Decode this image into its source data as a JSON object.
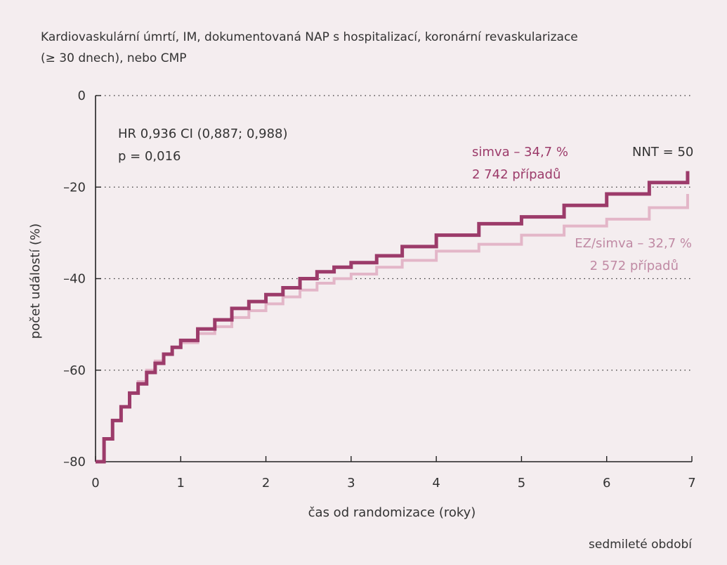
{
  "chart_data": {
    "type": "line",
    "title_lines": [
      "Kardiovaskulární úmrtí, IM, dokumentovaná NAP s hospitalizací, koronární revaskularizace",
      "(≥ 30 dnech), nebo CMP"
    ],
    "xlabel": "čas od randomizace (roky)",
    "ylabel": "počet událostí (%)",
    "footer": "sedmileté období",
    "xlim": [
      0,
      7
    ],
    "ylim": [
      -80,
      0
    ],
    "xticks": [
      "0",
      "1",
      "2",
      "3",
      "4",
      "5",
      "6",
      "7"
    ],
    "yticks": [
      "0",
      "–20",
      "–40",
      "–60",
      "–80"
    ],
    "ytick_values": [
      0,
      -20,
      -40,
      -60,
      -80
    ],
    "grid": "dotted horizontal",
    "stats_lines": [
      "HR 0,936 CI (0,887; 0,988)",
      "p = 0,016"
    ],
    "nnt_label": "NNT = 50",
    "series": [
      {
        "name": "simva – 34,7 %",
        "label_lines": [
          "simva – 34,7 %",
          "2 742 případů"
        ],
        "color": "#9c3b6a",
        "x": [
          0,
          0.1,
          0.2,
          0.3,
          0.4,
          0.5,
          0.6,
          0.7,
          0.8,
          0.9,
          1.0,
          1.2,
          1.4,
          1.6,
          1.8,
          2.0,
          2.2,
          2.4,
          2.6,
          2.8,
          3.0,
          3.3,
          3.6,
          4.0,
          4.5,
          5.0,
          5.5,
          6.0,
          6.5,
          6.95
        ],
        "y": [
          -80,
          -75,
          -71,
          -68,
          -65,
          -63,
          -60.5,
          -58.5,
          -56.5,
          -55,
          -53.5,
          -51,
          -49,
          -46.5,
          -45,
          -43.5,
          -42,
          -40,
          -38.5,
          -37.5,
          -36.5,
          -35,
          -33,
          -30.5,
          -28,
          -26.5,
          -24,
          -21.5,
          -19,
          -16.5
        ]
      },
      {
        "name": "EZ/simva – 32,7 %",
        "label_lines": [
          "EZ/simva – 32,7 %",
          "2 572 případů"
        ],
        "color": "#e3b6c8",
        "x": [
          0,
          0.1,
          0.2,
          0.3,
          0.4,
          0.5,
          0.6,
          0.7,
          0.8,
          0.9,
          1.0,
          1.2,
          1.4,
          1.6,
          1.8,
          2.0,
          2.2,
          2.4,
          2.6,
          2.8,
          3.0,
          3.3,
          3.6,
          4.0,
          4.5,
          5.0,
          5.5,
          6.0,
          6.5,
          6.95
        ],
        "y": [
          -80,
          -75,
          -71,
          -68,
          -65,
          -62.5,
          -60,
          -58,
          -56.5,
          -55,
          -54,
          -52,
          -50.5,
          -48.5,
          -47,
          -45.5,
          -44,
          -42.5,
          -41,
          -40,
          -39,
          -37.5,
          -36,
          -34,
          -32.5,
          -30.5,
          -28.5,
          -27,
          -24.5,
          -21.5
        ]
      }
    ]
  }
}
